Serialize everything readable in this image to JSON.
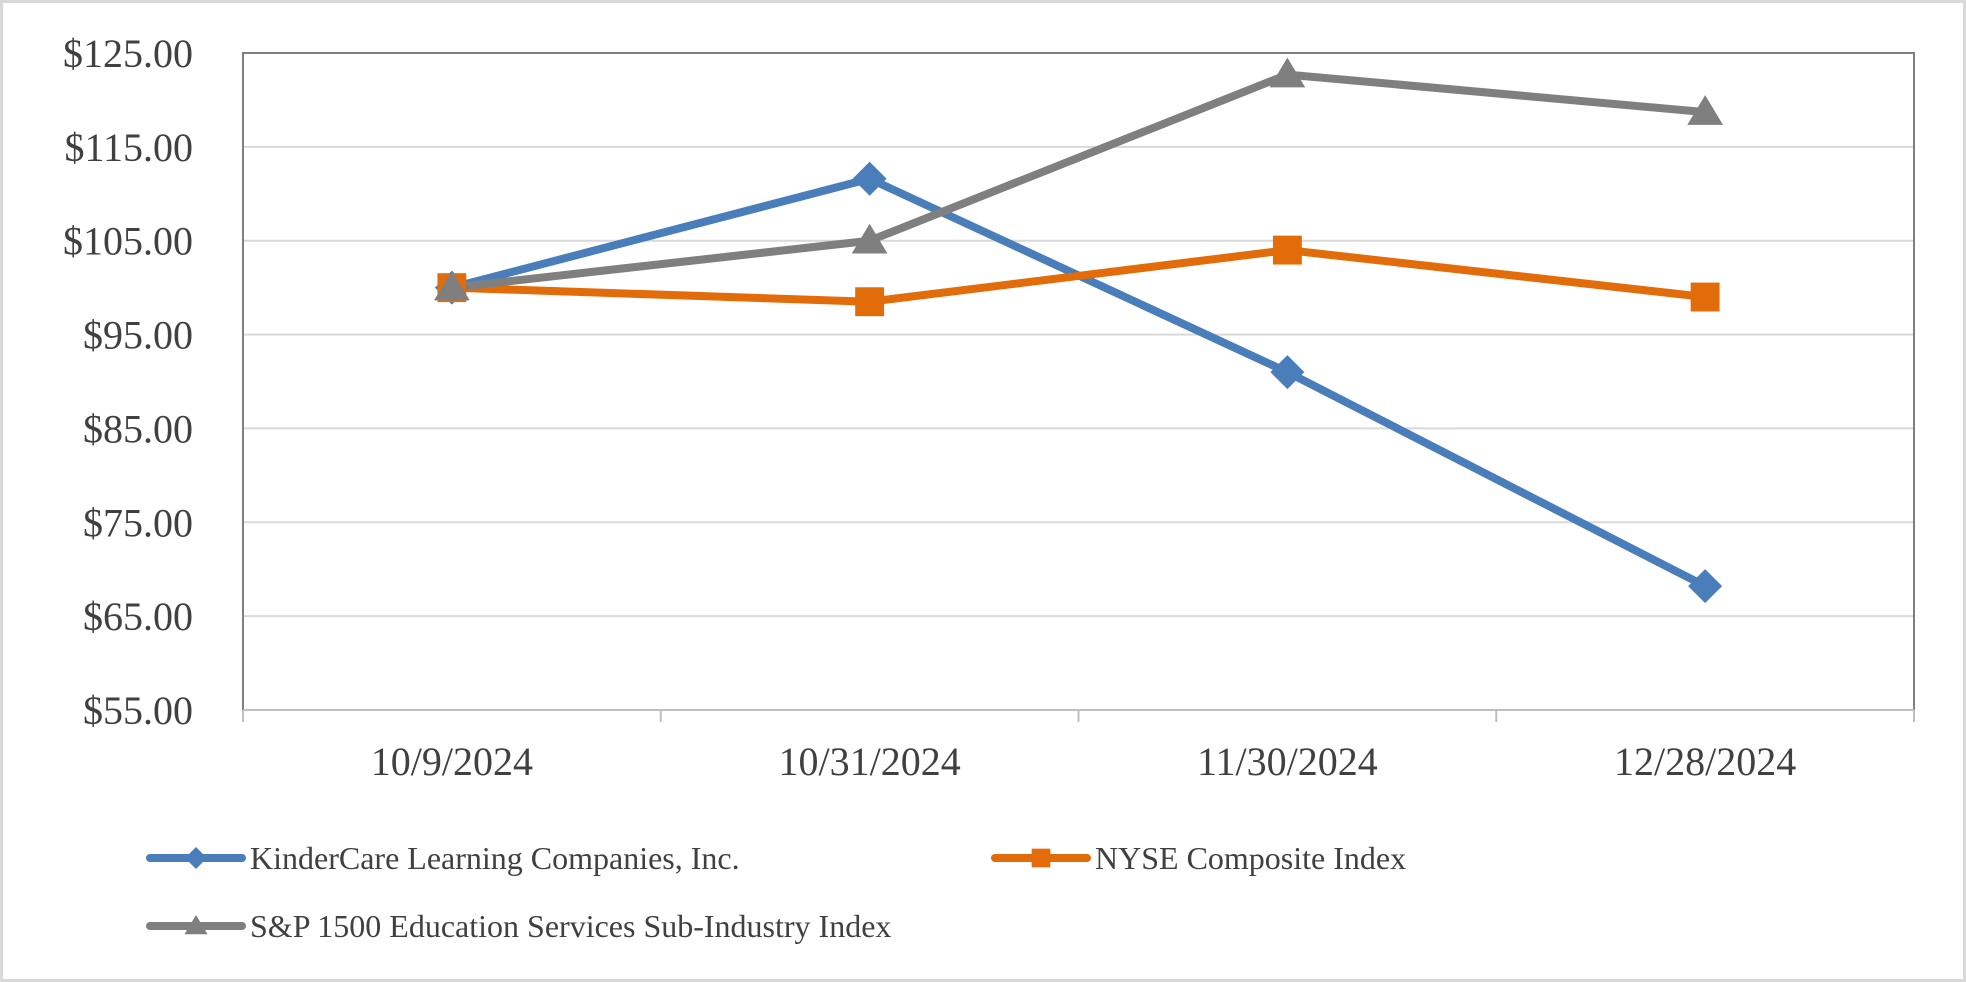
{
  "chart_data": {
    "type": "line",
    "x": [
      "10/9/2024",
      "10/31/2024",
      "11/30/2024",
      "12/28/2024"
    ],
    "ylim": [
      55,
      125
    ],
    "yticks": [
      55,
      65,
      75,
      85,
      95,
      105,
      115,
      125
    ],
    "ytick_labels": [
      "$55.00",
      "$65.00",
      "$75.00",
      "$85.00",
      "$95.00",
      "$105.00",
      "$115.00",
      "$125.00"
    ],
    "grid": true,
    "legend_position": "bottom",
    "series": [
      {
        "name": "KinderCare Learning Companies, Inc.",
        "values": [
          100.0,
          111.6,
          91.0,
          68.2
        ],
        "color": "#4a7ebb",
        "marker": "diamond"
      },
      {
        "name": "NYSE Composite Index",
        "values": [
          100.0,
          98.5,
          104.0,
          99.0
        ],
        "color": "#e36c0a",
        "marker": "square"
      },
      {
        "name": "S&P 1500 Education Services Sub-Industry Index",
        "values": [
          100.0,
          105.0,
          122.7,
          118.7
        ],
        "color": "#7f7f7f",
        "marker": "triangle"
      }
    ]
  }
}
